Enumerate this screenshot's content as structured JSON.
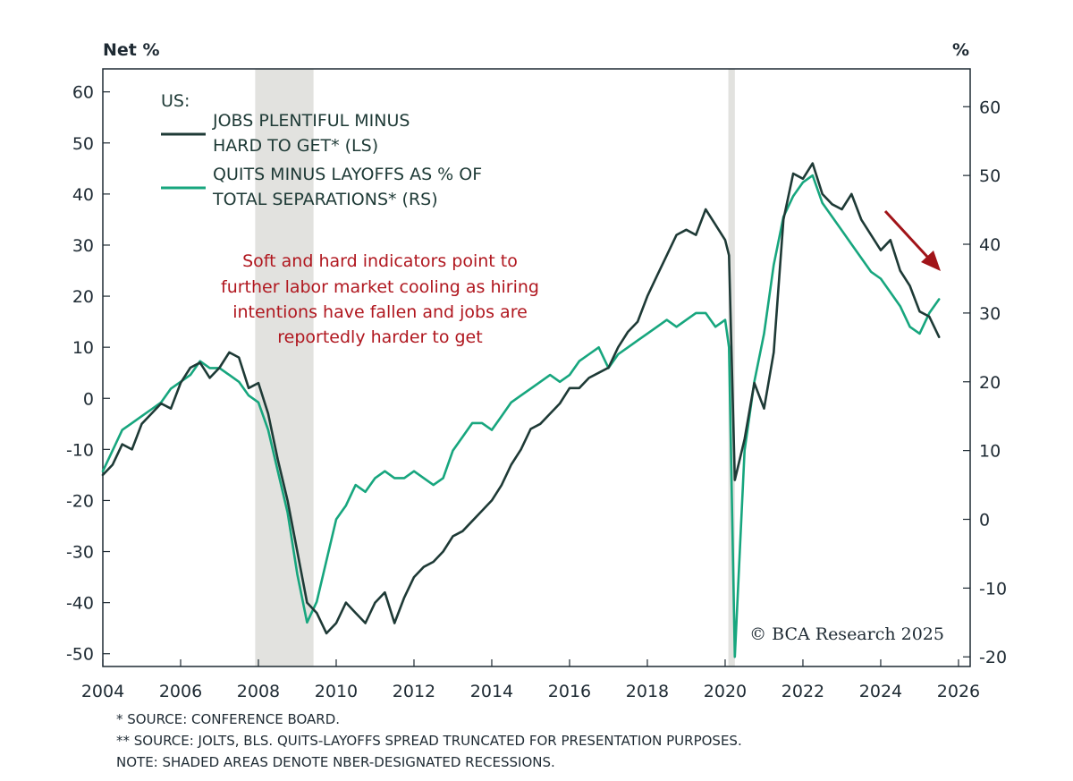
{
  "chart_data": {
    "type": "line",
    "left_unit": "Net %",
    "right_unit": "%",
    "x_ticks": [
      "2004",
      "2006",
      "2008",
      "2010",
      "2012",
      "2014",
      "2016",
      "2018",
      "2020",
      "2022",
      "2024",
      "2026"
    ],
    "left_ticks": [
      "60",
      "50",
      "40",
      "30",
      "20",
      "10",
      "0",
      "-10",
      "-20",
      "-30",
      "-40",
      "-50"
    ],
    "right_ticks": [
      "60",
      "50",
      "40",
      "30",
      "20",
      "10",
      "0",
      "-10",
      "-20"
    ],
    "xlim": [
      2004.0,
      2026.3
    ],
    "ylim_left": [
      -52.5,
      64.5
    ],
    "ylim_right": [
      -21.4,
      65.5
    ],
    "recessions": [
      [
        2007.917,
        2009.417
      ],
      [
        2020.083,
        2020.25
      ]
    ],
    "grid": false,
    "legend": {
      "title": "US:",
      "entries": [
        {
          "lines": [
            "JOBS PLENTIFUL MINUS",
            "HARD TO GET* (LS)"
          ],
          "color": "#1e3a36"
        },
        {
          "lines": [
            "QUITS MINUS LAYOFFS AS % OF",
            "TOTAL SEPARATIONS* (RS)"
          ],
          "color": "#17a67e"
        }
      ]
    },
    "annotation_lines": [
      "Soft and hard indicators point to",
      "further labor market cooling as hiring",
      "intentions have fallen and jobs are",
      "reportedly harder to get"
    ],
    "annotation_color": "#b0171f",
    "copyright": "© BCA Research 2025",
    "series": [
      {
        "name": "JOBS PLENTIFUL MINUS HARD TO GET* (LS)",
        "axis": "left",
        "color": "#1e3a36",
        "points": [
          [
            2004.0,
            -15
          ],
          [
            2004.25,
            -13
          ],
          [
            2004.5,
            -9
          ],
          [
            2004.75,
            -10
          ],
          [
            2005.0,
            -5
          ],
          [
            2005.25,
            -3
          ],
          [
            2005.5,
            -1
          ],
          [
            2005.75,
            -2
          ],
          [
            2006.0,
            3
          ],
          [
            2006.25,
            6
          ],
          [
            2006.5,
            7
          ],
          [
            2006.75,
            4
          ],
          [
            2007.0,
            6
          ],
          [
            2007.25,
            9
          ],
          [
            2007.5,
            8
          ],
          [
            2007.75,
            2
          ],
          [
            2008.0,
            3
          ],
          [
            2008.25,
            -3
          ],
          [
            2008.5,
            -12
          ],
          [
            2008.75,
            -20
          ],
          [
            2009.0,
            -30
          ],
          [
            2009.25,
            -40
          ],
          [
            2009.5,
            -42
          ],
          [
            2009.75,
            -46
          ],
          [
            2010.0,
            -44
          ],
          [
            2010.25,
            -40
          ],
          [
            2010.5,
            -42
          ],
          [
            2010.75,
            -44
          ],
          [
            2011.0,
            -40
          ],
          [
            2011.25,
            -38
          ],
          [
            2011.5,
            -44
          ],
          [
            2011.75,
            -39
          ],
          [
            2012.0,
            -35
          ],
          [
            2012.25,
            -33
          ],
          [
            2012.5,
            -32
          ],
          [
            2012.75,
            -30
          ],
          [
            2013.0,
            -27
          ],
          [
            2013.25,
            -26
          ],
          [
            2013.5,
            -24
          ],
          [
            2013.75,
            -22
          ],
          [
            2014.0,
            -20
          ],
          [
            2014.25,
            -17
          ],
          [
            2014.5,
            -13
          ],
          [
            2014.75,
            -10
          ],
          [
            2015.0,
            -6
          ],
          [
            2015.25,
            -5
          ],
          [
            2015.5,
            -3
          ],
          [
            2015.75,
            -1
          ],
          [
            2016.0,
            2
          ],
          [
            2016.25,
            2
          ],
          [
            2016.5,
            4
          ],
          [
            2016.75,
            5
          ],
          [
            2017.0,
            6
          ],
          [
            2017.25,
            10
          ],
          [
            2017.5,
            13
          ],
          [
            2017.75,
            15
          ],
          [
            2018.0,
            20
          ],
          [
            2018.25,
            24
          ],
          [
            2018.5,
            28
          ],
          [
            2018.75,
            32
          ],
          [
            2019.0,
            33
          ],
          [
            2019.25,
            32
          ],
          [
            2019.5,
            37
          ],
          [
            2019.75,
            34
          ],
          [
            2020.0,
            31
          ],
          [
            2020.1,
            28
          ],
          [
            2020.25,
            -16
          ],
          [
            2020.5,
            -8
          ],
          [
            2020.75,
            3
          ],
          [
            2021.0,
            -2
          ],
          [
            2021.25,
            9
          ],
          [
            2021.5,
            35
          ],
          [
            2021.75,
            44
          ],
          [
            2022.0,
            43
          ],
          [
            2022.25,
            46
          ],
          [
            2022.5,
            40
          ],
          [
            2022.75,
            38
          ],
          [
            2023.0,
            37
          ],
          [
            2023.25,
            40
          ],
          [
            2023.5,
            35
          ],
          [
            2023.75,
            32
          ],
          [
            2024.0,
            29
          ],
          [
            2024.25,
            31
          ],
          [
            2024.5,
            25
          ],
          [
            2024.75,
            22
          ],
          [
            2025.0,
            17
          ],
          [
            2025.25,
            16
          ],
          [
            2025.5,
            12
          ]
        ]
      },
      {
        "name": "QUITS MINUS LAYOFFS AS % OF TOTAL SEPARATIONS** (RS)",
        "axis": "right",
        "color": "#17a67e",
        "points": [
          [
            2004.0,
            7
          ],
          [
            2004.25,
            10
          ],
          [
            2004.5,
            13
          ],
          [
            2004.75,
            14
          ],
          [
            2005.0,
            15
          ],
          [
            2005.25,
            16
          ],
          [
            2005.5,
            17
          ],
          [
            2005.75,
            19
          ],
          [
            2006.0,
            20
          ],
          [
            2006.25,
            21
          ],
          [
            2006.5,
            23
          ],
          [
            2006.75,
            22
          ],
          [
            2007.0,
            22
          ],
          [
            2007.25,
            21
          ],
          [
            2007.5,
            20
          ],
          [
            2007.75,
            18
          ],
          [
            2008.0,
            17
          ],
          [
            2008.25,
            13
          ],
          [
            2008.5,
            7
          ],
          [
            2008.75,
            1
          ],
          [
            2009.0,
            -8
          ],
          [
            2009.25,
            -15
          ],
          [
            2009.5,
            -12
          ],
          [
            2009.75,
            -6
          ],
          [
            2010.0,
            0
          ],
          [
            2010.25,
            2
          ],
          [
            2010.5,
            5
          ],
          [
            2010.75,
            4
          ],
          [
            2011.0,
            6
          ],
          [
            2011.25,
            7
          ],
          [
            2011.5,
            6
          ],
          [
            2011.75,
            6
          ],
          [
            2012.0,
            7
          ],
          [
            2012.25,
            6
          ],
          [
            2012.5,
            5
          ],
          [
            2012.75,
            6
          ],
          [
            2013.0,
            10
          ],
          [
            2013.25,
            12
          ],
          [
            2013.5,
            14
          ],
          [
            2013.75,
            14
          ],
          [
            2014.0,
            13
          ],
          [
            2014.25,
            15
          ],
          [
            2014.5,
            17
          ],
          [
            2014.75,
            18
          ],
          [
            2015.0,
            19
          ],
          [
            2015.25,
            20
          ],
          [
            2015.5,
            21
          ],
          [
            2015.75,
            20
          ],
          [
            2016.0,
            21
          ],
          [
            2016.25,
            23
          ],
          [
            2016.5,
            24
          ],
          [
            2016.75,
            25
          ],
          [
            2017.0,
            22
          ],
          [
            2017.25,
            24
          ],
          [
            2017.5,
            25
          ],
          [
            2017.75,
            26
          ],
          [
            2018.0,
            27
          ],
          [
            2018.25,
            28
          ],
          [
            2018.5,
            29
          ],
          [
            2018.75,
            28
          ],
          [
            2019.0,
            29
          ],
          [
            2019.25,
            30
          ],
          [
            2019.5,
            30
          ],
          [
            2019.75,
            28
          ],
          [
            2020.0,
            29
          ],
          [
            2020.1,
            25
          ],
          [
            2020.25,
            -20
          ],
          [
            2020.5,
            10
          ],
          [
            2020.75,
            20
          ],
          [
            2021.0,
            27
          ],
          [
            2021.25,
            37
          ],
          [
            2021.5,
            44
          ],
          [
            2021.75,
            47
          ],
          [
            2022.0,
            49
          ],
          [
            2022.25,
            50
          ],
          [
            2022.5,
            46
          ],
          [
            2022.75,
            44
          ],
          [
            2023.0,
            42
          ],
          [
            2023.25,
            40
          ],
          [
            2023.5,
            38
          ],
          [
            2023.75,
            36
          ],
          [
            2024.0,
            35
          ],
          [
            2024.25,
            33
          ],
          [
            2024.5,
            31
          ],
          [
            2024.75,
            28
          ],
          [
            2025.0,
            27
          ],
          [
            2025.25,
            30
          ],
          [
            2025.5,
            32
          ]
        ]
      }
    ]
  },
  "footnotes": [
    "* SOURCE: CONFERENCE BOARD.",
    "** SOURCE: JOLTS, BLS. QUITS-LAYOFFS SPREAD TRUNCATED FOR PRESENTATION PURPOSES.",
    "NOTE: SHADED AREAS DENOTE NBER-DESIGNATED RECESSIONS."
  ]
}
